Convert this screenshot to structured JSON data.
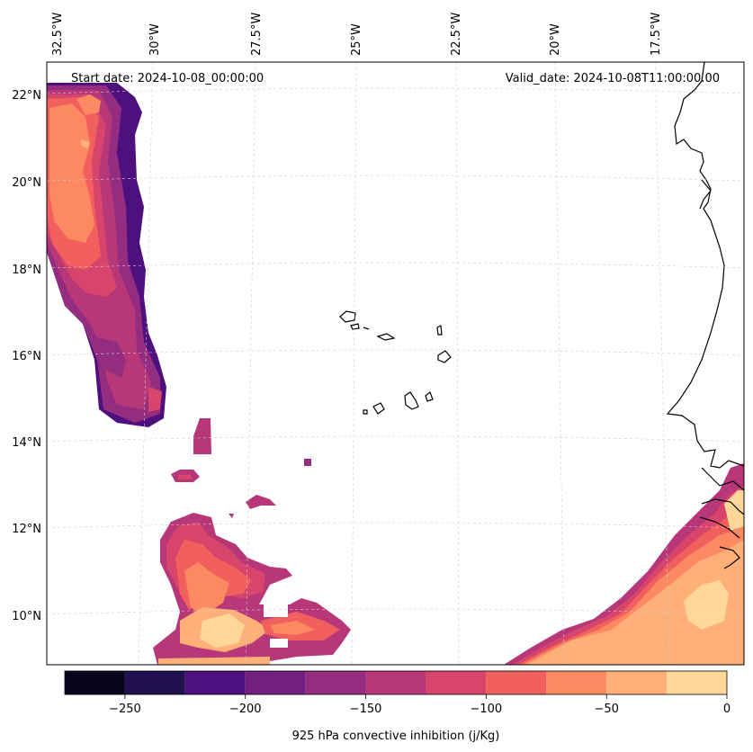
{
  "header": {
    "start_date": "Start date: 2024-10-08_00:00:00",
    "valid_date": "Valid_date: 2024-10-08T11:00:00.00"
  },
  "lon_labels": [
    "32.5°W",
    "30°W",
    "27.5°W",
    "25°W",
    "22.5°W",
    "20°W",
    "17.5°W"
  ],
  "lat_labels": [
    "22°N",
    "20°N",
    "18°N",
    "16°N",
    "14°N",
    "12°N",
    "10°N"
  ],
  "colorbar": {
    "label": "925 hPa convective inhibition (j/Kg)",
    "tick_labels": [
      "−250",
      "−200",
      "−150",
      "−100",
      "−50",
      "0"
    ],
    "levels": [
      -275,
      -250,
      -225,
      -200,
      -175,
      -150,
      -125,
      -100,
      -75,
      -50,
      -25,
      0
    ],
    "colors": [
      "#07061c",
      "#221150",
      "#4e107d",
      "#721f81",
      "#942c80",
      "#b73779",
      "#d8456c",
      "#f1605d",
      "#fc8961",
      "#feb078",
      "#fed799",
      "#fcfdbf"
    ]
  },
  "field_colors": {
    "m175": "#942c80",
    "m150": "#b73779",
    "m125": "#d8456c",
    "m100": "#f1605d",
    "m75": "#fc8961",
    "m50": "#feb078",
    "m25": "#fed799",
    "m200": "#721f81",
    "m225": "#4e107d"
  }
}
